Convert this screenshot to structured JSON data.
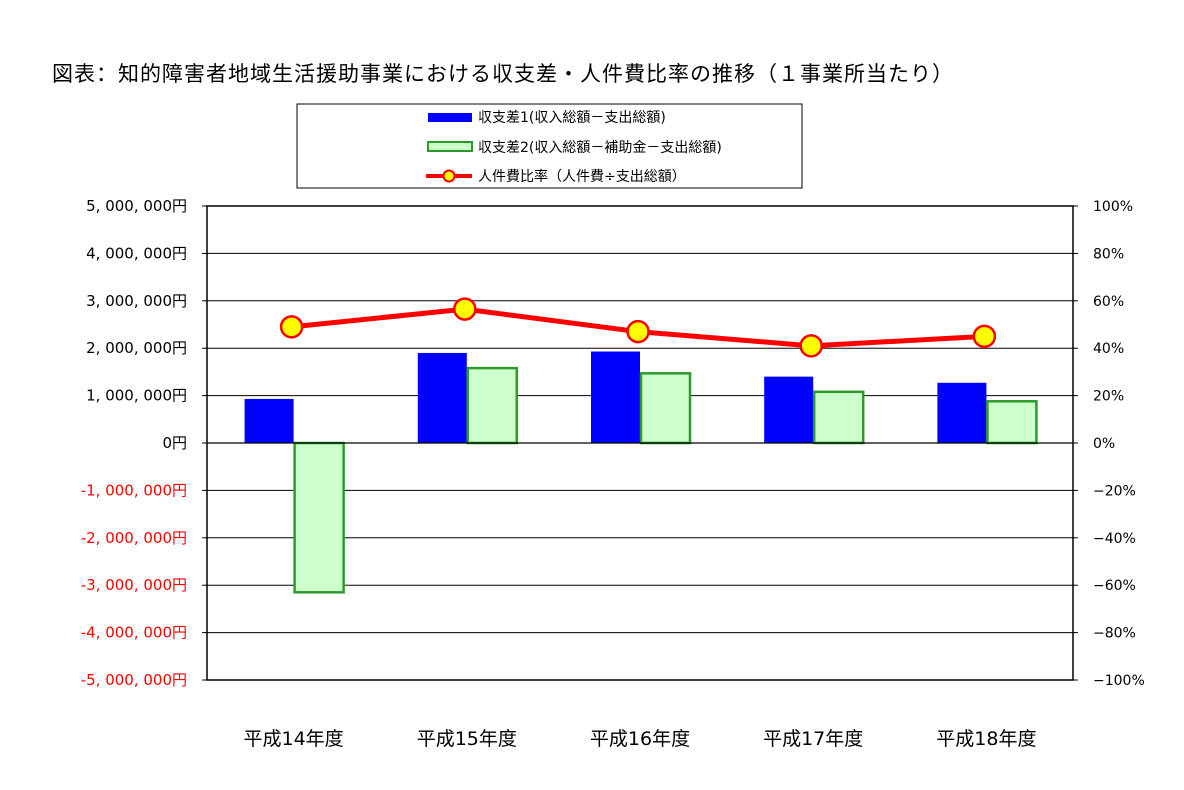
{
  "chart_data": {
    "type": "bar",
    "title": "図表：知的障害者地域生活援助事業における収支差・人件費比率の推移（１事業所当たり）",
    "categories": [
      "平成14年度",
      "平成15年度",
      "平成16年度",
      "平成17年度",
      "平成18年度"
    ],
    "series": [
      {
        "name": "収支差1(収入総額－支出総額)",
        "type": "bar",
        "axis": "left",
        "color": "#0000ff",
        "values": [
          930000,
          1900000,
          1930000,
          1400000,
          1270000
        ]
      },
      {
        "name": "収支差2(収入総額－補助金－支出総額)",
        "type": "bar",
        "axis": "left",
        "color": "#ccffcc",
        "border_color": "#2e9a2e",
        "values": [
          -3150000,
          1580000,
          1470000,
          1080000,
          880000
        ]
      },
      {
        "name": "人件費比率（人件費÷支出総額）",
        "type": "line",
        "axis": "right",
        "color": "#ff0000",
        "marker_color": "#ffff00",
        "values": [
          0.49,
          0.565,
          0.47,
          0.41,
          0.45
        ]
      }
    ],
    "y_left": {
      "min": -5000000,
      "max": 5000000,
      "step": 1000000,
      "tick_labels": [
        "5, 000, 000円",
        "4, 000, 000円",
        "3, 000, 000円",
        "2, 000, 000円",
        "1, 000, 000円",
        "0円",
        "-1, 000, 000円",
        "-2, 000, 000円",
        "-3, 000, 000円",
        "-4, 000, 000円",
        "-5, 000, 000円"
      ],
      "positive_color": "#000000",
      "negative_color": "#ff0000"
    },
    "y_right": {
      "min": -1.0,
      "max": 1.0,
      "step": 0.2,
      "tick_labels": [
        "100%",
        "80%",
        "60%",
        "40%",
        "20%",
        "0%",
        "−20%",
        "−40%",
        "−60%",
        "−80%",
        "−100%"
      ]
    },
    "grid": true,
    "legend_position": "top-center"
  }
}
